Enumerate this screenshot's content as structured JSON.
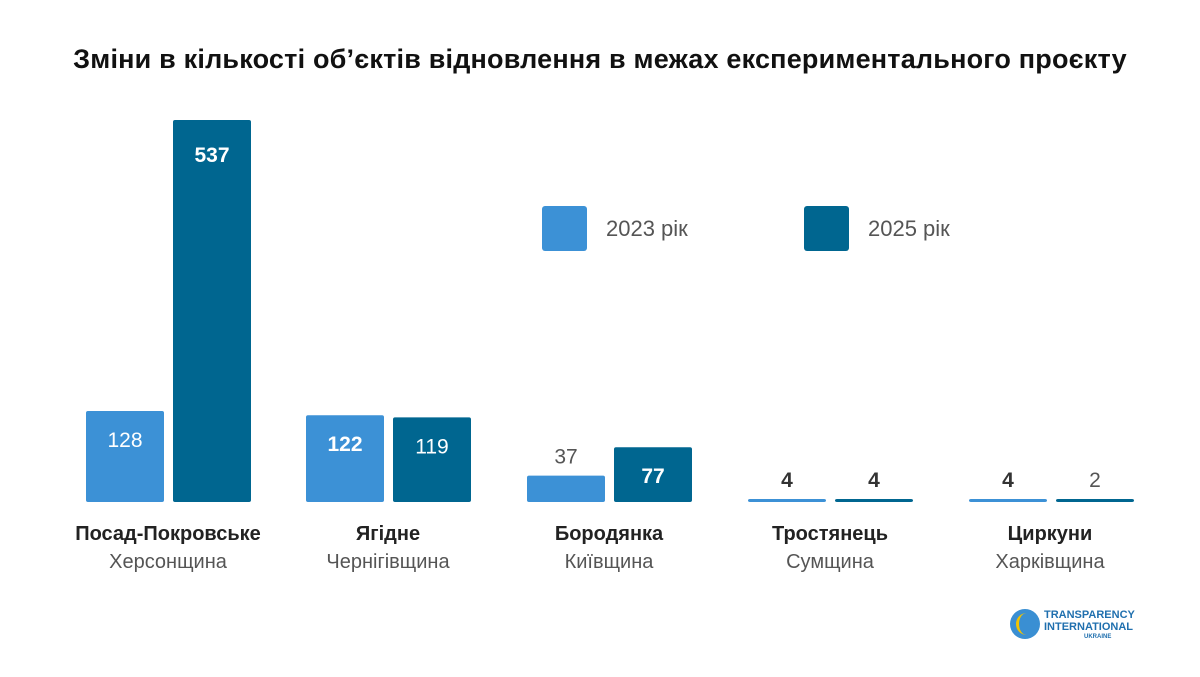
{
  "chart_data": {
    "type": "bar",
    "title": "Зміни в кількості об’єктів відновлення  в межах експериментального проєкту",
    "categories": [
      {
        "name": "Посад-Покровське",
        "region": "Херсонщина"
      },
      {
        "name": "Ягідне",
        "region": "Чернігівщина"
      },
      {
        "name": "Бородянка",
        "region": "Київщина"
      },
      {
        "name": "Тростянець",
        "region": "Сумщина"
      },
      {
        "name": "Циркуни",
        "region": "Харківщина"
      }
    ],
    "series": [
      {
        "name": "2023 рік",
        "color": "#3c91d6",
        "values": [
          128,
          122,
          37,
          4,
          4
        ],
        "label_bold": [
          false,
          true,
          false,
          true,
          true
        ]
      },
      {
        "name": "2025 рік",
        "color": "#006690",
        "values": [
          537,
          119,
          77,
          4,
          2
        ],
        "label_bold": [
          true,
          false,
          true,
          true,
          false
        ]
      }
    ],
    "ylim": [
      0,
      537
    ],
    "grid": false,
    "legend": "center"
  },
  "logo": {
    "line1": "TRANSPARENCY",
    "line2": "INTERNATIONAL",
    "line3": "UKRAINE"
  }
}
